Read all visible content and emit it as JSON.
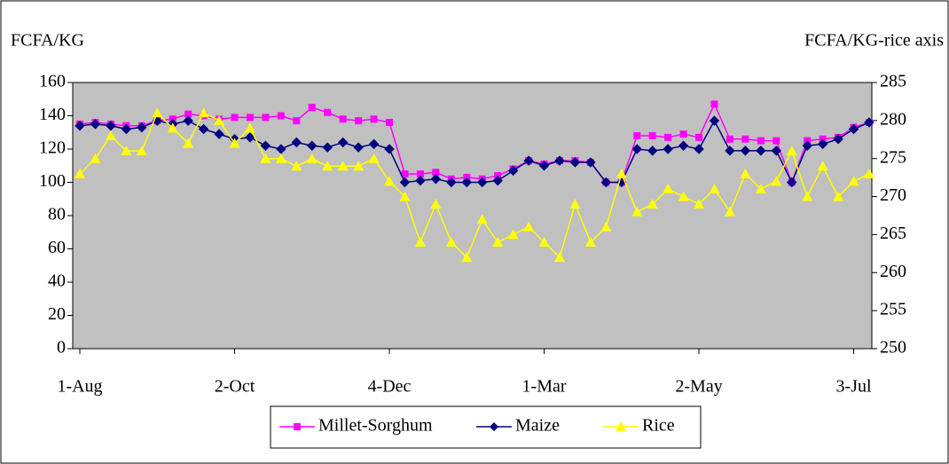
{
  "chart_data": {
    "type": "line",
    "y_axis_label": "FCFA/KG",
    "y2_axis_label": "FCFA/KG-rice axis",
    "categories": [
      "1-Aug",
      null,
      null,
      null,
      null,
      null,
      null,
      null,
      null,
      null,
      "2-Oct",
      null,
      null,
      null,
      null,
      null,
      null,
      null,
      null,
      null,
      "4-Dec",
      null,
      null,
      null,
      null,
      null,
      null,
      null,
      null,
      null,
      "1-Mar",
      null,
      null,
      null,
      null,
      null,
      null,
      null,
      null,
      null,
      "2-May",
      null,
      null,
      null,
      null,
      null,
      null,
      null,
      null,
      null,
      "3-Jul",
      null
    ],
    "series": [
      {
        "name": "Millet-Sorghum",
        "color": "#ff00ff",
        "marker": "square",
        "values": [
          135,
          136,
          135,
          134,
          134,
          137,
          138,
          141,
          140,
          138,
          139,
          139,
          139,
          140,
          137,
          145,
          142,
          138,
          137,
          138,
          136,
          105,
          105,
          106,
          102,
          103,
          102,
          104,
          108,
          113,
          111,
          113,
          113,
          112,
          100,
          100,
          128,
          128,
          127,
          129,
          127,
          147,
          126,
          126,
          125,
          125,
          100,
          125,
          126,
          127,
          133,
          136
        ]
      },
      {
        "name": "Maize",
        "color": "#000080",
        "marker": "diamond",
        "values": [
          134,
          135,
          134,
          132,
          133,
          137,
          135,
          137,
          132,
          129,
          126,
          127,
          122,
          120,
          124,
          122,
          121,
          124,
          121,
          123,
          120,
          100,
          101,
          102,
          100,
          100,
          100,
          101,
          107,
          113,
          110,
          113,
          112,
          112,
          100,
          100,
          120,
          119,
          120,
          122,
          120,
          137,
          119,
          119,
          119,
          119,
          100,
          122,
          123,
          126,
          132,
          136
        ]
      },
      {
        "name": "Rice",
        "color": "#ffff00",
        "marker": "triangle",
        "axis": "y2",
        "values": [
          273,
          275,
          278,
          276,
          276,
          281,
          279,
          277,
          281,
          280,
          277,
          279,
          275,
          275,
          274,
          275,
          274,
          274,
          274,
          275,
          272,
          270,
          264,
          269,
          264,
          262,
          267,
          264,
          265,
          266,
          264,
          262,
          269,
          264,
          266,
          273,
          268,
          269,
          271,
          270,
          269,
          271,
          268,
          273,
          271,
          272,
          276,
          270,
          274,
          270,
          272,
          273
        ]
      }
    ],
    "ylim": [
      0,
      160
    ],
    "yticks": [
      0,
      20,
      40,
      60,
      80,
      100,
      120,
      140,
      160
    ],
    "y2lim": [
      250,
      285
    ],
    "y2ticks": [
      250,
      255,
      260,
      265,
      270,
      275,
      280,
      285
    ],
    "plot_background": "#c0c0c0",
    "legend": "bottom"
  }
}
